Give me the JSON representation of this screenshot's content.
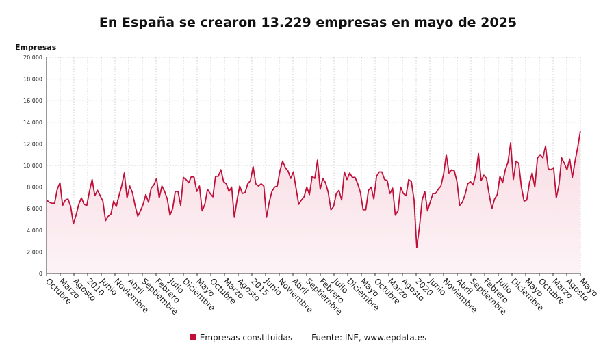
{
  "title": "En España se crearon 13.229 empresas en mayo de 2025",
  "colors": {
    "line": "#c0103a",
    "area_top": "#f7dbe3",
    "area_bottom": "#fdf3f6",
    "grid": "#d4d4d4",
    "axis": "#333333"
  },
  "footer": {
    "legend_label": "Empresas constituidas",
    "source": "Fuente: INE, www.epdata.es"
  },
  "chart_data": {
    "type": "area",
    "title": "En España se crearon 13.229 empresas en mayo de 2025",
    "xlabel": "",
    "ylabel": "Empresas",
    "ylim": [
      0,
      20000
    ],
    "y_ticks": [
      0,
      2000,
      4000,
      6000,
      8000,
      10000,
      12000,
      14000,
      16000,
      18000,
      20000
    ],
    "y_tick_labels": [
      "0",
      "2.000",
      "4.000",
      "6.000",
      "8.000",
      "10.000",
      "12.000",
      "14.000",
      "16.000",
      "18.000",
      "20.000"
    ],
    "x_tick_labels": [
      "Octubre",
      "Marzo",
      "Agosto",
      "2010",
      "Junio",
      "Noviembre",
      "Abril",
      "Septiembre",
      "Febrero",
      "Julio",
      "Diciembre",
      "Mayo",
      "Octubre",
      "Marzo",
      "Agosto",
      "2015",
      "Junio",
      "Noviembre",
      "Abril",
      "Septiembre",
      "Febrero",
      "Julio",
      "Diciembre",
      "Mayo",
      "Octubre",
      "Marzo",
      "Agosto",
      "2020",
      "Junio",
      "Noviembre",
      "Abril",
      "Septiembre",
      "Febrero",
      "Julio",
      "Diciembre",
      "Mayo",
      "Octubre",
      "Marzo",
      "Agosto",
      "Mayo"
    ],
    "x_start": "2008-10",
    "x_end": "2025-05",
    "grid": true,
    "legend": "bottom",
    "series": [
      {
        "name": "Empresas constituidas",
        "values": [
          6800,
          6600,
          6500,
          6500,
          7800,
          8400,
          6300,
          6800,
          6900,
          6200,
          4600,
          5400,
          6400,
          7000,
          6400,
          6300,
          7600,
          8700,
          7200,
          7700,
          7200,
          6700,
          4900,
          5300,
          5500,
          6700,
          6200,
          7200,
          8100,
          9300,
          7000,
          8100,
          7500,
          6300,
          5300,
          5800,
          6400,
          7300,
          6600,
          7900,
          8200,
          8800,
          7000,
          8100,
          7600,
          6900,
          5400,
          6000,
          7600,
          7600,
          6300,
          8900,
          8700,
          8400,
          9000,
          8900,
          7600,
          8100,
          5800,
          6400,
          7800,
          7400,
          7100,
          9000,
          9000,
          9600,
          8500,
          8300,
          7600,
          8000,
          5200,
          6800,
          8100,
          7400,
          7500,
          8300,
          8600,
          9900,
          8300,
          8100,
          8300,
          8100,
          5200,
          6600,
          7600,
          8000,
          8100,
          9500,
          10400,
          9800,
          9500,
          8800,
          9400,
          7900,
          6400,
          6800,
          7100,
          8000,
          7300,
          9000,
          8800,
          10500,
          7800,
          8800,
          8400,
          7500,
          5900,
          6200,
          7400,
          7700,
          6800,
          9400,
          8700,
          9300,
          8900,
          8900,
          8300,
          7500,
          5900,
          5900,
          7700,
          8000,
          6900,
          9000,
          9400,
          9400,
          8700,
          8600,
          7400,
          7900,
          5400,
          5800,
          8000,
          7400,
          7200,
          8700,
          8500,
          6800,
          2400,
          4300,
          6800,
          7600,
          5800,
          6600,
          7400,
          7400,
          7800,
          8100,
          9200,
          11000,
          9300,
          9600,
          9500,
          8500,
          6300,
          6600,
          7300,
          8300,
          8500,
          8200,
          9200,
          11100,
          8600,
          9100,
          8800,
          7300,
          6000,
          6900,
          7300,
          9000,
          8400,
          9600,
          10300,
          12100,
          8700,
          10400,
          10200,
          8000,
          6700,
          6800,
          8400,
          9300,
          8000,
          10700,
          11000,
          10700,
          11800,
          9700,
          9600,
          9800,
          7000,
          8200,
          10700,
          10200,
          9600,
          10600,
          8900,
          10400,
          11700,
          13229
        ]
      }
    ]
  }
}
